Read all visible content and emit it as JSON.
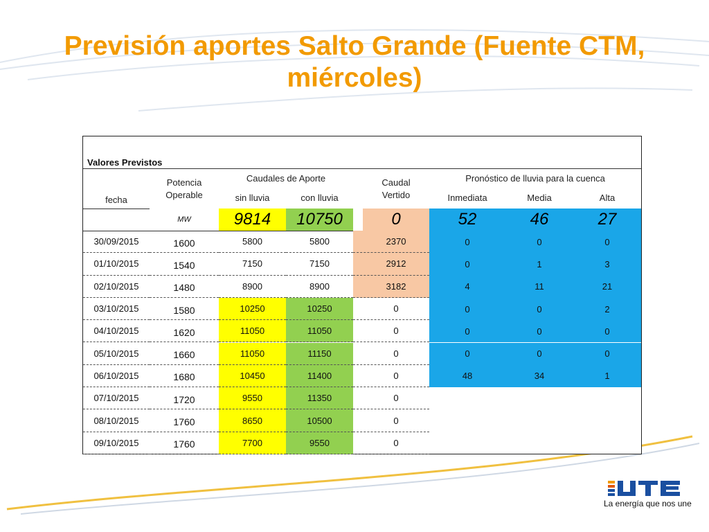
{
  "slide": {
    "title": "Previsión aportes Salto Grande (Fuente CTM, miércoles)"
  },
  "table": {
    "caption": "Valores Previstos",
    "headers": {
      "fecha": "fecha",
      "potencia_line1": "Potencia",
      "potencia_line2": "Operable",
      "caudales": "Caudales de Aporte",
      "sin_lluvia": "sin lluvia",
      "con_lluvia": "con lluvia",
      "caudal_line1": "Caudal",
      "caudal_line2": "Vertido",
      "pronostico": "Pronóstico de lluvia para la cuenca",
      "inmediata": "Inmediata",
      "media": "Media",
      "alta": "Alta"
    },
    "summary": {
      "unit": "MW",
      "sin_lluvia": "9814",
      "con_lluvia": "10750",
      "vertido": "0",
      "inmediata": "52",
      "media": "46",
      "alta": "27"
    },
    "rows": [
      {
        "fecha": "30/09/2015",
        "potencia": "1600",
        "sin": "5800",
        "con": "5800",
        "vertido": "2370",
        "inm": "0",
        "med": "0",
        "alta": "0"
      },
      {
        "fecha": "01/10/2015",
        "potencia": "1540",
        "sin": "7150",
        "con": "7150",
        "vertido": "2912",
        "inm": "0",
        "med": "1",
        "alta": "3"
      },
      {
        "fecha": "02/10/2015",
        "potencia": "1480",
        "sin": "8900",
        "con": "8900",
        "vertido": "3182",
        "inm": "4",
        "med": "11",
        "alta": "21"
      },
      {
        "fecha": "03/10/2015",
        "potencia": "1580",
        "sin": "10250",
        "con": "10250",
        "vertido": "0",
        "inm": "0",
        "med": "0",
        "alta": "2"
      },
      {
        "fecha": "04/10/2015",
        "potencia": "1620",
        "sin": "11050",
        "con": "11050",
        "vertido": "0",
        "inm": "0",
        "med": "0",
        "alta": "0"
      },
      {
        "fecha": "05/10/2015",
        "potencia": "1660",
        "sin": "11050",
        "con": "11150",
        "vertido": "0",
        "inm": "0",
        "med": "0",
        "alta": "0"
      },
      {
        "fecha": "06/10/2015",
        "potencia": "1680",
        "sin": "10450",
        "con": "11400",
        "vertido": "0",
        "inm": "48",
        "med": "34",
        "alta": "1"
      },
      {
        "fecha": "07/10/2015",
        "potencia": "1720",
        "sin": "9550",
        "con": "11350",
        "vertido": "0"
      },
      {
        "fecha": "08/10/2015",
        "potencia": "1760",
        "sin": "8650",
        "con": "10500",
        "vertido": "0"
      },
      {
        "fecha": "09/10/2015",
        "potencia": "1760",
        "sin": "7700",
        "con": "9550",
        "vertido": "0"
      }
    ]
  },
  "brand": {
    "slogan": "La energía que nos une"
  },
  "colors": {
    "title": "#f29a00",
    "yellow": "#ffff00",
    "green": "#92d050",
    "orange": "#f8c8a4",
    "blue": "#1aa6e8"
  }
}
